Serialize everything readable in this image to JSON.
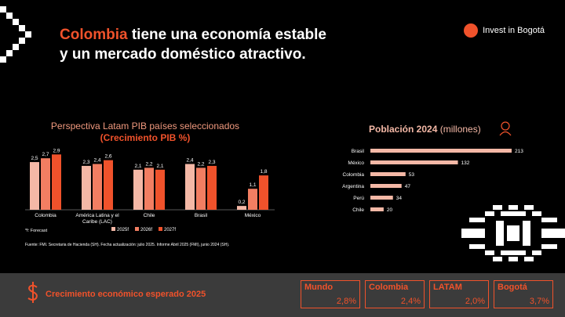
{
  "header": {
    "title_highlight": "Colombia",
    "title_rest": " tiene una economía estable",
    "title_line2": "y un mercado doméstico atractivo.",
    "brand": "Invest in Bogotá"
  },
  "colors": {
    "accent": "#f0522b",
    "s2025": "#f4b8a6",
    "s2026": "#f27e62",
    "s2027": "#f0522b",
    "bg": "#000000"
  },
  "chart_data": [
    {
      "type": "bar",
      "title": "Perspectiva Latam PIB países seleccionados",
      "subtitle": "(Crecimiento PIB %)",
      "categories": [
        "Colombia",
        "América Latina y el Caribe (LAC)",
        "Chile",
        "Brasil",
        "México"
      ],
      "series": [
        {
          "name": "2025f",
          "values": [
            2.5,
            2.3,
            2.1,
            2.4,
            0.2
          ]
        },
        {
          "name": "2026f",
          "values": [
            2.7,
            2.4,
            2.2,
            2.2,
            1.1
          ]
        },
        {
          "name": "2027f",
          "values": [
            2.9,
            2.6,
            2.1,
            2.3,
            1.8
          ]
        }
      ],
      "value_labels": [
        [
          "2,5",
          "2,3",
          "2,1",
          "2,4",
          "0,2"
        ],
        [
          "2,7",
          "2,4",
          "2,2",
          "2,2",
          "1,1"
        ],
        [
          "2,9",
          "2,6",
          "2,1",
          "2,3",
          "1,8"
        ]
      ],
      "ylim": [
        0,
        3.2
      ],
      "note": "*f: Forecast"
    },
    {
      "type": "bar",
      "orientation": "horizontal",
      "title": "Población 2024",
      "title_unit": "(millones)",
      "categories": [
        "Brasil",
        "México",
        "Colombia",
        "Argentina",
        "Perú",
        "Chile"
      ],
      "values": [
        213,
        132,
        53,
        47,
        34,
        20
      ],
      "xlim": [
        0,
        213
      ]
    }
  ],
  "footnote": "Fuente: FMI. Secretaria de Hacienda (SH). Fecha actualización: julio 2025. Informe Abril 2025 (FMI), junio 2024 (SH).",
  "bottom": {
    "label": "Crecimiento económico esperado 2025",
    "kpis": [
      {
        "name": "Mundo",
        "value": "2,8%"
      },
      {
        "name": "Colombia",
        "value": "2,4%"
      },
      {
        "name": "LATAM",
        "value": "2,0%"
      },
      {
        "name": "Bogotá",
        "value": "3,7%"
      }
    ]
  }
}
